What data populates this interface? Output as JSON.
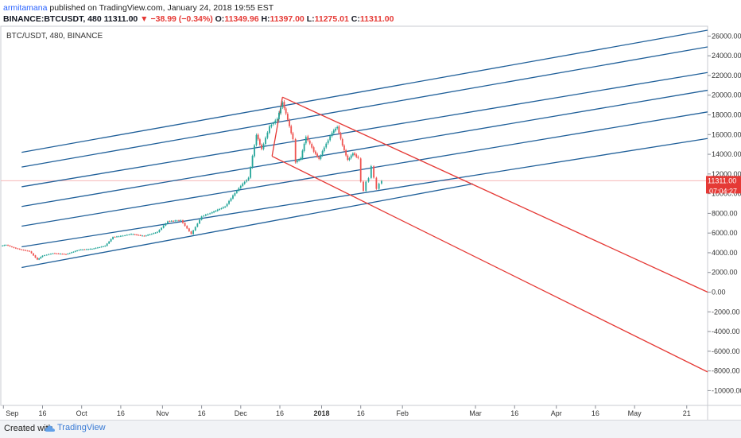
{
  "header": {
    "author": "armitamana",
    "published": "published on TradingView.com, January 24, 2018 19:55 EST"
  },
  "ohlc": {
    "symbol": "BINANCE:BTCUSDT, 480",
    "last": "11311.00",
    "change": "▼ −38.99 (−0.34%)",
    "o_label": "O:",
    "o": "11349.96",
    "h_label": "H:",
    "h": "11397.00",
    "l_label": "L:",
    "l": "11275.01",
    "c_label": "C:",
    "c": "11311.00"
  },
  "chart_symbol_label": "BTC/USDT, 480, BINANCE",
  "price_tag": {
    "price": "11311.00",
    "countdown": "07:04:27",
    "color": "#e53935"
  },
  "footer": {
    "created": "Created with",
    "brand": "TradingView"
  },
  "colors": {
    "channel": "#1f5f99",
    "pitchfork": "#e53935",
    "up": "#26a69a",
    "down": "#ef5350",
    "priceline": "#f6b7b7"
  },
  "chart_data": {
    "type": "candlestick",
    "title": "",
    "ylim": [
      -11500,
      27000
    ],
    "y_ticks": [
      26000,
      24000,
      22000,
      20000,
      18000,
      16000,
      14000,
      12000,
      10000,
      8000,
      6000,
      4000,
      2000,
      0,
      -2000,
      -4000,
      -6000,
      -8000,
      -10000
    ],
    "y_tick_labels": [
      "26000.00",
      "24000.00",
      "22000.00",
      "20000.00",
      "18000.00",
      "16000.00",
      "14000.00",
      "12000.00",
      "10000.00",
      "8000.00",
      "6000.00",
      "4000.00",
      "2000.00",
      "0.00",
      "-2000.00",
      "-4000.00",
      "-6000.00",
      "-8000.00",
      "-10000.00"
    ],
    "x_range": [
      "2017-08-31",
      "2018-05-29"
    ],
    "x_ticks": [
      {
        "label": "Sep",
        "date": "2017-09-01",
        "bold": false
      },
      {
        "label": "16",
        "date": "2017-09-16",
        "bold": false
      },
      {
        "label": "Oct",
        "date": "2017-10-01",
        "bold": false
      },
      {
        "label": "16",
        "date": "2017-10-16",
        "bold": false
      },
      {
        "label": "Nov",
        "date": "2017-11-01",
        "bold": false
      },
      {
        "label": "16",
        "date": "2017-11-16",
        "bold": false
      },
      {
        "label": "Dec",
        "date": "2017-12-01",
        "bold": false
      },
      {
        "label": "16",
        "date": "2017-12-16",
        "bold": false
      },
      {
        "label": "2018",
        "date": "2018-01-01",
        "bold": true
      },
      {
        "label": "16",
        "date": "2018-01-16",
        "bold": false
      },
      {
        "label": "Feb",
        "date": "2018-02-01",
        "bold": false
      },
      {
        "label": "Mar",
        "date": "2018-03-01",
        "bold": false
      },
      {
        "label": "16",
        "date": "2018-03-16",
        "bold": false
      },
      {
        "label": "Apr",
        "date": "2018-04-01",
        "bold": false
      },
      {
        "label": "16",
        "date": "2018-04-16",
        "bold": false
      },
      {
        "label": "May",
        "date": "2018-05-01",
        "bold": false
      },
      {
        "label": "21",
        "date": "2018-05-21",
        "bold": false
      }
    ],
    "price_series": [
      {
        "date": "2017-08-31",
        "close": 4700
      },
      {
        "date": "2017-09-02",
        "close": 4800
      },
      {
        "date": "2017-09-05",
        "close": 4500
      },
      {
        "date": "2017-09-08",
        "close": 4300
      },
      {
        "date": "2017-09-11",
        "close": 4150
      },
      {
        "date": "2017-09-14",
        "close": 3300
      },
      {
        "date": "2017-09-16",
        "close": 3700
      },
      {
        "date": "2017-09-20",
        "close": 3950
      },
      {
        "date": "2017-09-25",
        "close": 3850
      },
      {
        "date": "2017-09-30",
        "close": 4300
      },
      {
        "date": "2017-10-05",
        "close": 4400
      },
      {
        "date": "2017-10-10",
        "close": 4700
      },
      {
        "date": "2017-10-13",
        "close": 5600
      },
      {
        "date": "2017-10-16",
        "close": 5700
      },
      {
        "date": "2017-10-20",
        "close": 5900
      },
      {
        "date": "2017-10-25",
        "close": 5700
      },
      {
        "date": "2017-10-30",
        "close": 6100
      },
      {
        "date": "2017-11-03",
        "close": 7200
      },
      {
        "date": "2017-11-08",
        "close": 7300
      },
      {
        "date": "2017-11-12",
        "close": 5900
      },
      {
        "date": "2017-11-16",
        "close": 7700
      },
      {
        "date": "2017-11-20",
        "close": 8100
      },
      {
        "date": "2017-11-25",
        "close": 8700
      },
      {
        "date": "2017-11-28",
        "close": 9800
      },
      {
        "date": "2017-12-01",
        "close": 10800
      },
      {
        "date": "2017-12-04",
        "close": 11600
      },
      {
        "date": "2017-12-07",
        "close": 16000
      },
      {
        "date": "2017-12-09",
        "close": 14500
      },
      {
        "date": "2017-12-12",
        "close": 16800
      },
      {
        "date": "2017-12-15",
        "close": 17600
      },
      {
        "date": "2017-12-17",
        "close": 19300
      },
      {
        "date": "2017-12-19",
        "close": 17500
      },
      {
        "date": "2017-12-21",
        "close": 15500
      },
      {
        "date": "2017-12-22",
        "close": 13200
      },
      {
        "date": "2017-12-24",
        "close": 13600
      },
      {
        "date": "2017-12-26",
        "close": 15800
      },
      {
        "date": "2017-12-29",
        "close": 14300
      },
      {
        "date": "2017-12-31",
        "close": 13500
      },
      {
        "date": "2018-01-02",
        "close": 14700
      },
      {
        "date": "2018-01-05",
        "close": 16200
      },
      {
        "date": "2018-01-07",
        "close": 16800
      },
      {
        "date": "2018-01-09",
        "close": 14900
      },
      {
        "date": "2018-01-11",
        "close": 13400
      },
      {
        "date": "2018-01-13",
        "close": 14100
      },
      {
        "date": "2018-01-15",
        "close": 13600
      },
      {
        "date": "2018-01-16",
        "close": 11200
      },
      {
        "date": "2018-01-17",
        "close": 10300
      },
      {
        "date": "2018-01-18",
        "close": 11200
      },
      {
        "date": "2018-01-19",
        "close": 11600
      },
      {
        "date": "2018-01-20",
        "close": 12800
      },
      {
        "date": "2018-01-21",
        "close": 11600
      },
      {
        "date": "2018-01-22",
        "close": 10500
      },
      {
        "date": "2018-01-23",
        "close": 11000
      },
      {
        "date": "2018-01-24",
        "close": 11311
      }
    ],
    "channel_lines": [
      {
        "start": {
          "date": "2017-09-08",
          "y": 2500
        },
        "end": {
          "date": "2018-02-28",
          "y": 11000
        }
      },
      {
        "start": {
          "date": "2017-09-08",
          "y": 4600
        },
        "end": {
          "date": "2018-05-29",
          "y": 15600
        }
      },
      {
        "start": {
          "date": "2017-09-08",
          "y": 6700
        },
        "end": {
          "date": "2018-05-29",
          "y": 18300
        }
      },
      {
        "start": {
          "date": "2017-09-08",
          "y": 8700
        },
        "end": {
          "date": "2018-05-29",
          "y": 20500
        }
      },
      {
        "start": {
          "date": "2017-09-08",
          "y": 10700
        },
        "end": {
          "date": "2018-05-29",
          "y": 22300
        }
      },
      {
        "start": {
          "date": "2017-09-08",
          "y": 12700
        },
        "end": {
          "date": "2018-05-29",
          "y": 24900
        }
      },
      {
        "start": {
          "date": "2017-09-08",
          "y": 14200
        },
        "end": {
          "date": "2018-05-29",
          "y": 26600
        }
      }
    ],
    "pitchfork_lines": [
      {
        "start": {
          "date": "2017-12-17",
          "y": 19800
        },
        "end": {
          "date": "2018-05-29",
          "y": 0
        }
      },
      {
        "start": {
          "date": "2017-12-13",
          "y": 13800
        },
        "end": {
          "date": "2018-05-29",
          "y": -8100
        }
      },
      {
        "start": {
          "date": "2017-12-13",
          "y": 13800
        },
        "end": {
          "date": "2017-12-17",
          "y": 19800
        }
      }
    ],
    "last_price": 11311
  }
}
